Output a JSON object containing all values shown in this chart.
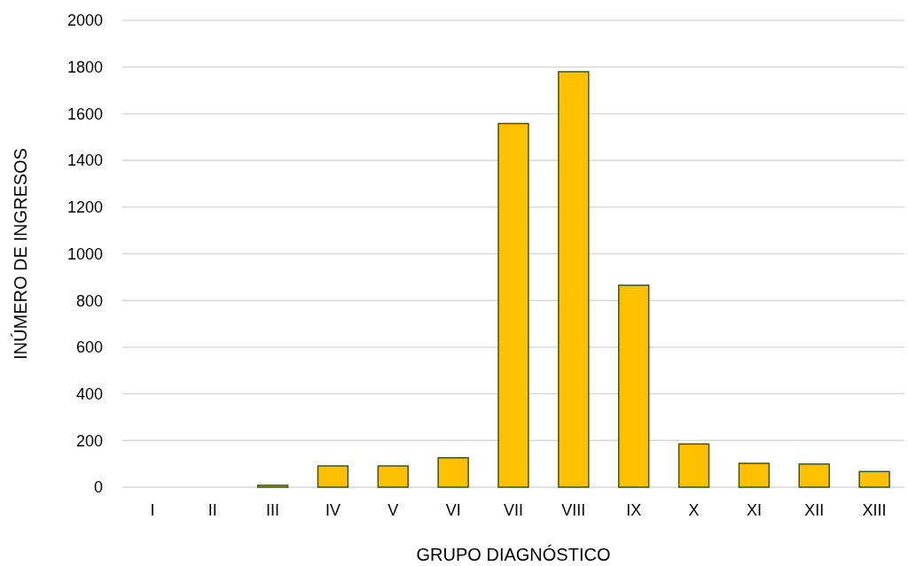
{
  "chart_data": {
    "type": "bar",
    "xlabel": "GRUPO DIAGNÓSTICO",
    "ylabel": "INÚMERO DE INGRESOS",
    "categories": [
      "I",
      "II",
      "III",
      "IV",
      "V",
      "VI",
      "VII",
      "VIII",
      "IX",
      "X",
      "XI",
      "XII",
      "XIII"
    ],
    "values": [
      0,
      0,
      8,
      91,
      91,
      126,
      1558,
      1780,
      865,
      185,
      102,
      99,
      67
    ],
    "color": "#ffc000",
    "ylim": [
      0,
      2000
    ],
    "yticks": [
      0,
      200,
      400,
      600,
      800,
      1000,
      1200,
      1400,
      1600,
      1800,
      2000
    ],
    "grid": "y"
  }
}
